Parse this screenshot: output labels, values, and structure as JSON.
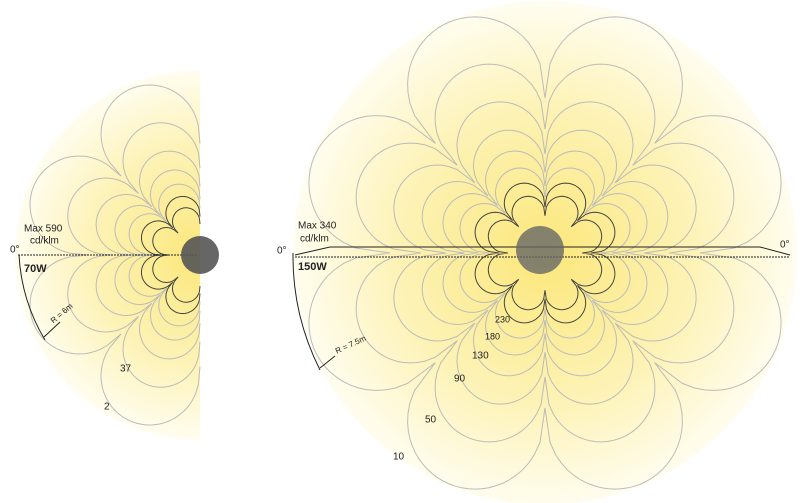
{
  "panels": [
    {
      "zero": "0°",
      "max": "Max 590",
      "unit": "cd/klm",
      "power": "70W",
      "radius": "R = 6m",
      "contours": [
        "37",
        "2"
      ]
    },
    {
      "zero_left": "0°",
      "zero_right": "0°",
      "max": "Max 340",
      "unit": "cd/klm",
      "power": "150W",
      "radius": "R = 7.5m",
      "contours": [
        "230",
        "180",
        "130",
        "90",
        "50",
        "10"
      ]
    }
  ]
}
